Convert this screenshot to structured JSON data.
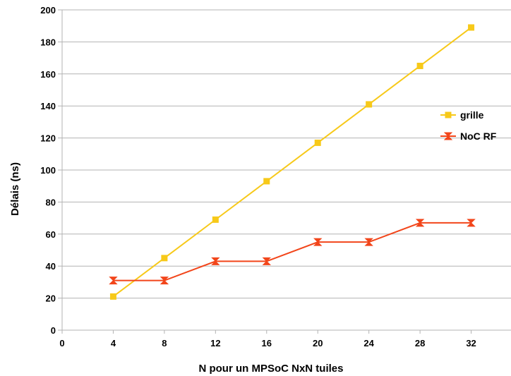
{
  "chart_data": {
    "type": "line",
    "title": "",
    "xlabel": "N pour un MPSoC NxN tuiles",
    "ylabel": "Délais (ns)",
    "x": [
      4,
      8,
      12,
      16,
      20,
      24,
      28,
      32
    ],
    "xticks": [
      0,
      4,
      8,
      12,
      16,
      20,
      24,
      28,
      32
    ],
    "yticks": [
      0,
      20,
      40,
      60,
      80,
      100,
      120,
      140,
      160,
      180,
      200
    ],
    "xlim": [
      0,
      36
    ],
    "ylim": [
      0,
      200
    ],
    "grid": "horizontal",
    "legend_position": "right",
    "series": [
      {
        "name": "grille",
        "color": "#f7c919",
        "marker": "square",
        "values": [
          21,
          45,
          69,
          93,
          117,
          141,
          165,
          189
        ]
      },
      {
        "name": "NoC RF",
        "color": "#f2451a",
        "marker": "hourglass",
        "values": [
          31,
          31,
          43,
          43,
          55,
          55,
          67,
          67
        ]
      }
    ]
  }
}
